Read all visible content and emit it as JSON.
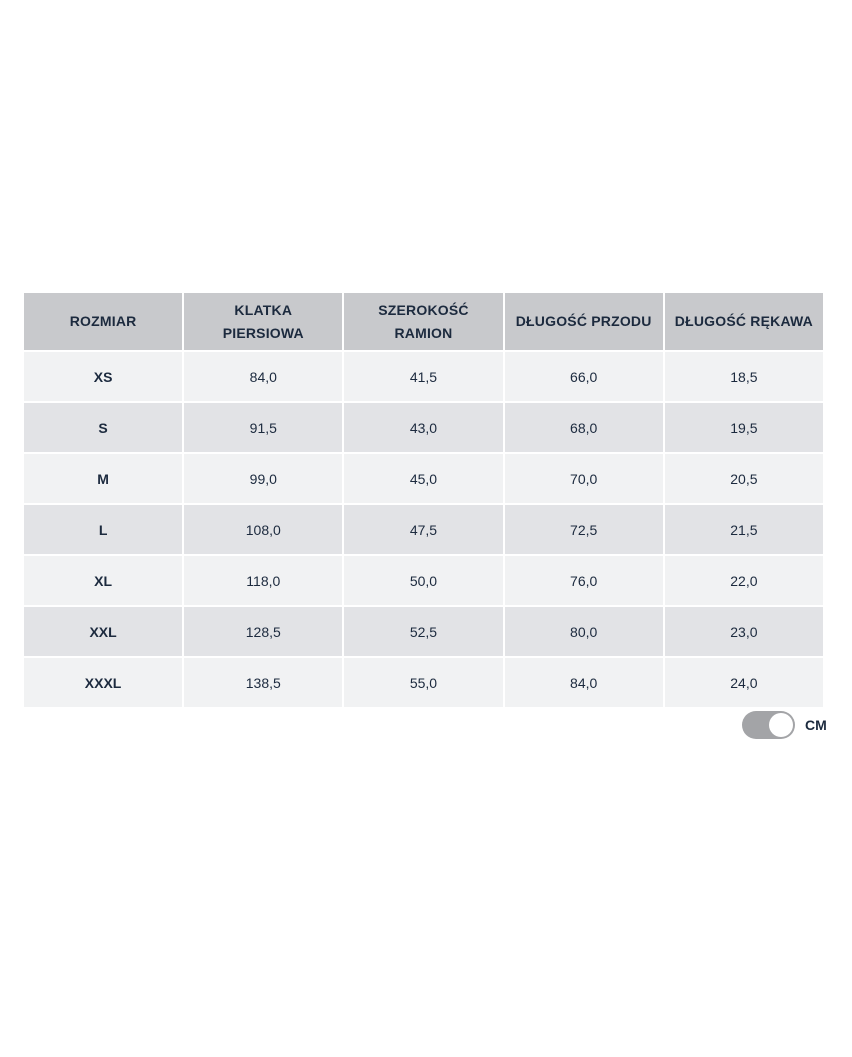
{
  "table": {
    "headers": [
      "ROZMIAR",
      "KLATKA PIERSIOWA",
      "SZEROKOŚĆ RAMION",
      "DŁUGOŚĆ PRZODU",
      "DŁUGOŚĆ RĘKAWA"
    ],
    "rows": [
      [
        "XS",
        "84,0",
        "41,5",
        "66,0",
        "18,5"
      ],
      [
        "S",
        "91,5",
        "43,0",
        "68,0",
        "19,5"
      ],
      [
        "M",
        "99,0",
        "45,0",
        "70,0",
        "20,5"
      ],
      [
        "L",
        "108,0",
        "47,5",
        "72,5",
        "21,5"
      ],
      [
        "XL",
        "118,0",
        "50,0",
        "76,0",
        "22,0"
      ],
      [
        "XXL",
        "128,5",
        "52,5",
        "80,0",
        "23,0"
      ],
      [
        "XXXL",
        "138,5",
        "55,0",
        "84,0",
        "24,0"
      ]
    ]
  },
  "unit_toggle": {
    "label": "CM",
    "on": true
  }
}
